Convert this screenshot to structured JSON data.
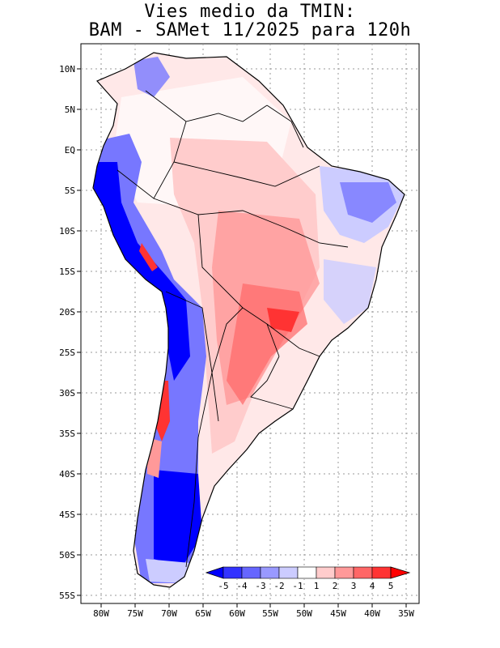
{
  "title": {
    "line1": "Vies medio da TMIN:",
    "line2": "BAM - SAMet 11/2025  para 120h"
  },
  "axes": {
    "lat_labels": [
      "10N",
      "5N",
      "EQ",
      "5S",
      "10S",
      "15S",
      "20S",
      "25S",
      "30S",
      "35S",
      "40S",
      "45S",
      "50S",
      "55S"
    ],
    "lon_labels": [
      "80W",
      "75W",
      "70W",
      "65W",
      "60W",
      "55W",
      "50W",
      "45W",
      "40W",
      "35W"
    ]
  },
  "legend": {
    "labels": [
      "-5",
      "-4",
      "-3",
      "-2",
      "-1",
      "1",
      "2",
      "3",
      "4",
      "5"
    ],
    "colors": [
      "#0000ff",
      "#3333ff",
      "#6666ff",
      "#9999ff",
      "#ccccff",
      "#ffffff",
      "#ffcccc",
      "#ff9999",
      "#ff6666",
      "#ff3333",
      "#ff0000"
    ]
  },
  "colors": {
    "strong_cold": "#0000ff",
    "cold": "#5a5aff",
    "light_cold": "#ccccff",
    "light_warm": "#ffd9d9",
    "warm": "#ff9999",
    "strong_warm": "#ff3333"
  }
}
